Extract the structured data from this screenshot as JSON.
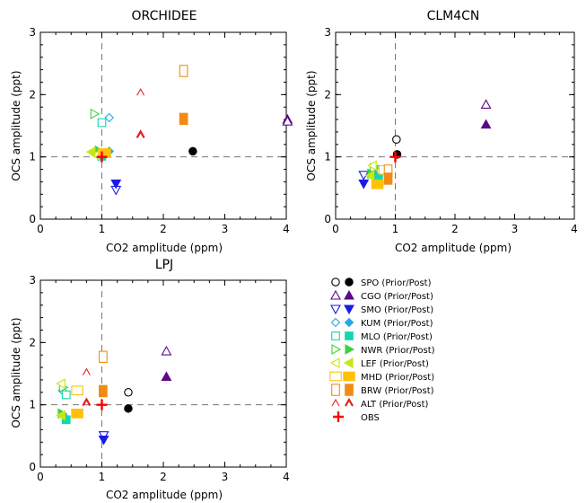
{
  "chart_data": [
    {
      "type": "scatter",
      "title": "ORCHIDEE",
      "xlabel": "CO2 amplitude (ppm)",
      "ylabel": "OCS amplitude (ppt)",
      "xlim": [
        0,
        4
      ],
      "ylim": [
        0,
        3
      ],
      "xticks": [
        "0",
        "1",
        "2",
        "3",
        "4"
      ],
      "yticks": [
        "0",
        "1",
        "2",
        "3"
      ],
      "reference_lines": {
        "x": 1,
        "y": 1
      },
      "points": [
        {
          "station": "SPO",
          "kind": "post",
          "x": 2.48,
          "y": 1.09
        },
        {
          "station": "CGO",
          "kind": "post",
          "x": 4.02,
          "y": 1.6
        },
        {
          "station": "CGO",
          "kind": "prior",
          "x": 4.02,
          "y": 1.57
        },
        {
          "station": "SMO",
          "kind": "prior",
          "x": 1.23,
          "y": 0.47
        },
        {
          "station": "SMO",
          "kind": "post",
          "x": 1.23,
          "y": 0.57
        },
        {
          "station": "KUM",
          "kind": "prior",
          "x": 1.12,
          "y": 1.63
        },
        {
          "station": "KUM",
          "kind": "post",
          "x": 1.12,
          "y": 1.09
        },
        {
          "station": "MLO",
          "kind": "prior",
          "x": 1.0,
          "y": 1.55
        },
        {
          "station": "MLO",
          "kind": "post",
          "x": 1.0,
          "y": 1.01
        },
        {
          "station": "NWR",
          "kind": "prior",
          "x": 0.88,
          "y": 1.69
        },
        {
          "station": "NWR",
          "kind": "post",
          "x": 0.95,
          "y": 1.1
        },
        {
          "station": "LEF",
          "kind": "prior",
          "x": 0.9,
          "y": 1.03
        },
        {
          "station": "LEF",
          "kind": "post",
          "x": 0.83,
          "y": 1.08
        },
        {
          "station": "MHD",
          "kind": "prior",
          "x": 1.03,
          "y": 1.06
        },
        {
          "station": "MHD",
          "kind": "post",
          "x": 1.05,
          "y": 1.06
        },
        {
          "station": "BRW",
          "kind": "prior",
          "x": 2.33,
          "y": 2.38
        },
        {
          "station": "BRW",
          "kind": "post",
          "x": 2.33,
          "y": 1.61
        },
        {
          "station": "ALT",
          "kind": "prior",
          "x": 1.63,
          "y": 2.03
        },
        {
          "station": "ALT",
          "kind": "post",
          "x": 1.63,
          "y": 1.35
        },
        {
          "station": "OBS",
          "kind": "obs",
          "x": 1.0,
          "y": 1.0
        }
      ]
    },
    {
      "type": "scatter",
      "title": "CLM4CN",
      "xlabel": "CO2 amplitude (ppm)",
      "ylabel": "OCS amplitude (ppt)",
      "xlim": [
        0,
        4
      ],
      "ylim": [
        0,
        3
      ],
      "xticks": [
        "0",
        "1",
        "2",
        "3",
        "4"
      ],
      "yticks": [
        "0",
        "1",
        "2",
        "3"
      ],
      "reference_lines": {
        "x": 1,
        "y": 1
      },
      "points": [
        {
          "station": "SPO",
          "kind": "prior",
          "x": 1.02,
          "y": 1.28
        },
        {
          "station": "SPO",
          "kind": "post",
          "x": 1.03,
          "y": 1.04
        },
        {
          "station": "CGO",
          "kind": "prior",
          "x": 2.52,
          "y": 1.84
        },
        {
          "station": "CGO",
          "kind": "post",
          "x": 2.52,
          "y": 1.52
        },
        {
          "station": "SMO",
          "kind": "prior",
          "x": 0.47,
          "y": 0.71
        },
        {
          "station": "SMO",
          "kind": "post",
          "x": 0.47,
          "y": 0.57
        },
        {
          "station": "KUM",
          "kind": "prior",
          "x": 0.71,
          "y": 0.8
        },
        {
          "station": "KUM",
          "kind": "post",
          "x": 0.66,
          "y": 0.7
        },
        {
          "station": "MLO",
          "kind": "prior",
          "x": 0.76,
          "y": 0.79
        },
        {
          "station": "MLO",
          "kind": "post",
          "x": 0.72,
          "y": 0.66
        },
        {
          "station": "NWR",
          "kind": "prior",
          "x": 0.64,
          "y": 0.82
        },
        {
          "station": "NWR",
          "kind": "post",
          "x": 0.6,
          "y": 0.73
        },
        {
          "station": "LEF",
          "kind": "prior",
          "x": 0.62,
          "y": 0.86
        },
        {
          "station": "LEF",
          "kind": "post",
          "x": 0.58,
          "y": 0.7
        },
        {
          "station": "MHD",
          "kind": "prior",
          "x": 0.82,
          "y": 0.79
        },
        {
          "station": "MHD",
          "kind": "post",
          "x": 0.7,
          "y": 0.56
        },
        {
          "station": "BRW",
          "kind": "prior",
          "x": 0.88,
          "y": 0.78
        },
        {
          "station": "BRW",
          "kind": "post",
          "x": 0.88,
          "y": 0.65
        },
        {
          "station": "OBS",
          "kind": "obs",
          "x": 1.0,
          "y": 1.0
        }
      ]
    },
    {
      "type": "scatter",
      "title": "LPJ",
      "xlabel": "CO2 amplitude (ppm)",
      "ylabel": "OCS amplitude (ppt)",
      "xlim": [
        0,
        4
      ],
      "ylim": [
        0,
        3
      ],
      "xticks": [
        "0",
        "1",
        "2",
        "3",
        "4"
      ],
      "yticks": [
        "0",
        "1",
        "2",
        "3"
      ],
      "reference_lines": {
        "x": 1,
        "y": 1
      },
      "points": [
        {
          "station": "SPO",
          "kind": "prior",
          "x": 1.43,
          "y": 1.2
        },
        {
          "station": "SPO",
          "kind": "post",
          "x": 1.43,
          "y": 0.94
        },
        {
          "station": "CGO",
          "kind": "prior",
          "x": 2.05,
          "y": 1.86
        },
        {
          "station": "CGO",
          "kind": "post",
          "x": 2.05,
          "y": 1.45
        },
        {
          "station": "SMO",
          "kind": "prior",
          "x": 1.03,
          "y": 0.51
        },
        {
          "station": "SMO",
          "kind": "post",
          "x": 1.03,
          "y": 0.44
        },
        {
          "station": "KUM",
          "kind": "prior",
          "x": 0.36,
          "y": 1.23
        },
        {
          "station": "KUM",
          "kind": "post",
          "x": 0.38,
          "y": 0.82
        },
        {
          "station": "MLO",
          "kind": "prior",
          "x": 0.42,
          "y": 1.16
        },
        {
          "station": "MLO",
          "kind": "post",
          "x": 0.42,
          "y": 0.76
        },
        {
          "station": "NWR",
          "kind": "prior",
          "x": 0.37,
          "y": 1.28
        },
        {
          "station": "NWR",
          "kind": "post",
          "x": 0.35,
          "y": 0.86
        },
        {
          "station": "LEF",
          "kind": "prior",
          "x": 0.34,
          "y": 1.34
        },
        {
          "station": "LEF",
          "kind": "post",
          "x": 0.34,
          "y": 0.83
        },
        {
          "station": "MHD",
          "kind": "prior",
          "x": 0.6,
          "y": 1.23
        },
        {
          "station": "MHD",
          "kind": "post",
          "x": 0.6,
          "y": 0.86
        },
        {
          "station": "BRW",
          "kind": "prior",
          "x": 1.02,
          "y": 1.77
        },
        {
          "station": "BRW",
          "kind": "post",
          "x": 1.02,
          "y": 1.22
        },
        {
          "station": "ALT",
          "kind": "prior",
          "x": 0.75,
          "y": 1.52
        },
        {
          "station": "ALT",
          "kind": "post",
          "x": 0.75,
          "y": 1.03
        },
        {
          "station": "OBS",
          "kind": "obs",
          "x": 1.0,
          "y": 1.0
        }
      ]
    }
  ],
  "legend": [
    {
      "station": "SPO",
      "label": "SPO (Prior/Post)",
      "marker": "circle",
      "color": "#000000"
    },
    {
      "station": "CGO",
      "label": "CGO (Prior/Post)",
      "marker": "triangle-up",
      "color": "#5b0a8a"
    },
    {
      "station": "SMO",
      "label": "SMO (Prior/Post)",
      "marker": "triangle-down",
      "color": "#1a1ae6"
    },
    {
      "station": "KUM",
      "label": "KUM (Prior/Post)",
      "marker": "diamond",
      "color": "#27a9e1"
    },
    {
      "station": "MLO",
      "label": "MLO (Prior/Post)",
      "marker": "square",
      "color": "#14d6b0"
    },
    {
      "station": "NWR",
      "label": "NWR (Prior/Post)",
      "marker": "triangle-right",
      "color": "#3bd23b"
    },
    {
      "station": "LEF",
      "label": "LEF (Prior/Post)",
      "marker": "triangle-left",
      "color": "#c8e614"
    },
    {
      "station": "MHD",
      "label": "MHD (Prior/Post)",
      "marker": "square-wide",
      "color": "#ffc107"
    },
    {
      "station": "BRW",
      "label": "BRW (Prior/Post)",
      "marker": "square-tall",
      "color": "#f08c14"
    },
    {
      "station": "ALT",
      "label": "ALT (Prior/Post)",
      "marker": "chevron",
      "color": "#e61e1e"
    },
    {
      "station": "OBS",
      "label": "OBS",
      "marker": "plus",
      "color": "#ff0000"
    }
  ]
}
